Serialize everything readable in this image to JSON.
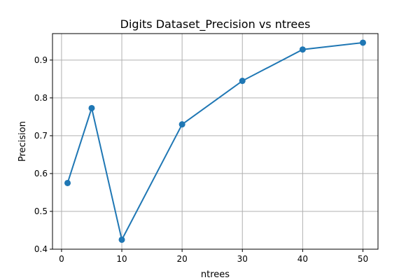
{
  "chart_data": {
    "type": "line",
    "title": "Digits Dataset_Precision vs ntrees",
    "xlabel": "ntrees",
    "ylabel": "Precision",
    "xlim": [
      -1.5,
      52.5
    ],
    "ylim": [
      0.4,
      0.97
    ],
    "xticks": [
      0,
      10,
      20,
      30,
      40,
      50
    ],
    "yticks": [
      0.4,
      0.5,
      0.6,
      0.7,
      0.8,
      0.9
    ],
    "grid": true,
    "series": [
      {
        "color": "#1f77b4",
        "marker": "circle",
        "x": [
          1,
          5,
          10,
          20,
          30,
          40,
          50
        ],
        "y": [
          0.575,
          0.773,
          0.425,
          0.73,
          0.845,
          0.928,
          0.946
        ]
      }
    ]
  }
}
